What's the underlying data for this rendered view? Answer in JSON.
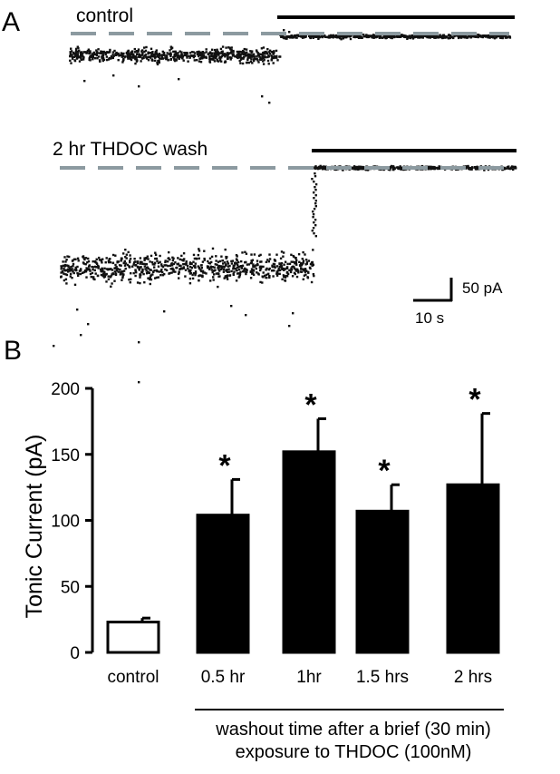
{
  "panels": {
    "a": {
      "letter": "A",
      "control_label": "control",
      "wash_label": "2 hr THDOC wash",
      "scale_y_label": "50 pA",
      "scale_x_label": "10 s"
    },
    "b": {
      "letter": "B",
      "xaxis_caption_line1": "washout time after a brief (30 min)",
      "xaxis_caption_line2": "exposure to THDOC (100nM)"
    }
  },
  "colors": {
    "dashed_baseline": "#8c9aa0",
    "bar_fill": "#000000",
    "control_bar_fill": "#ffffff",
    "trace_dots": "#111111"
  },
  "chart_data": {
    "type": "bar",
    "categories": [
      "control",
      "0.5 hr",
      "1hr",
      "1.5 hrs",
      "2 hrs"
    ],
    "values": [
      23,
      104,
      152,
      107,
      127
    ],
    "errors": [
      3,
      27,
      25,
      20,
      54
    ],
    "significance": [
      "",
      "*",
      "*",
      "*",
      "*"
    ],
    "ylabel": "Tonic Current (pA)",
    "ylim": [
      0,
      200
    ],
    "yticks": [
      0,
      50,
      100,
      150,
      200
    ]
  }
}
